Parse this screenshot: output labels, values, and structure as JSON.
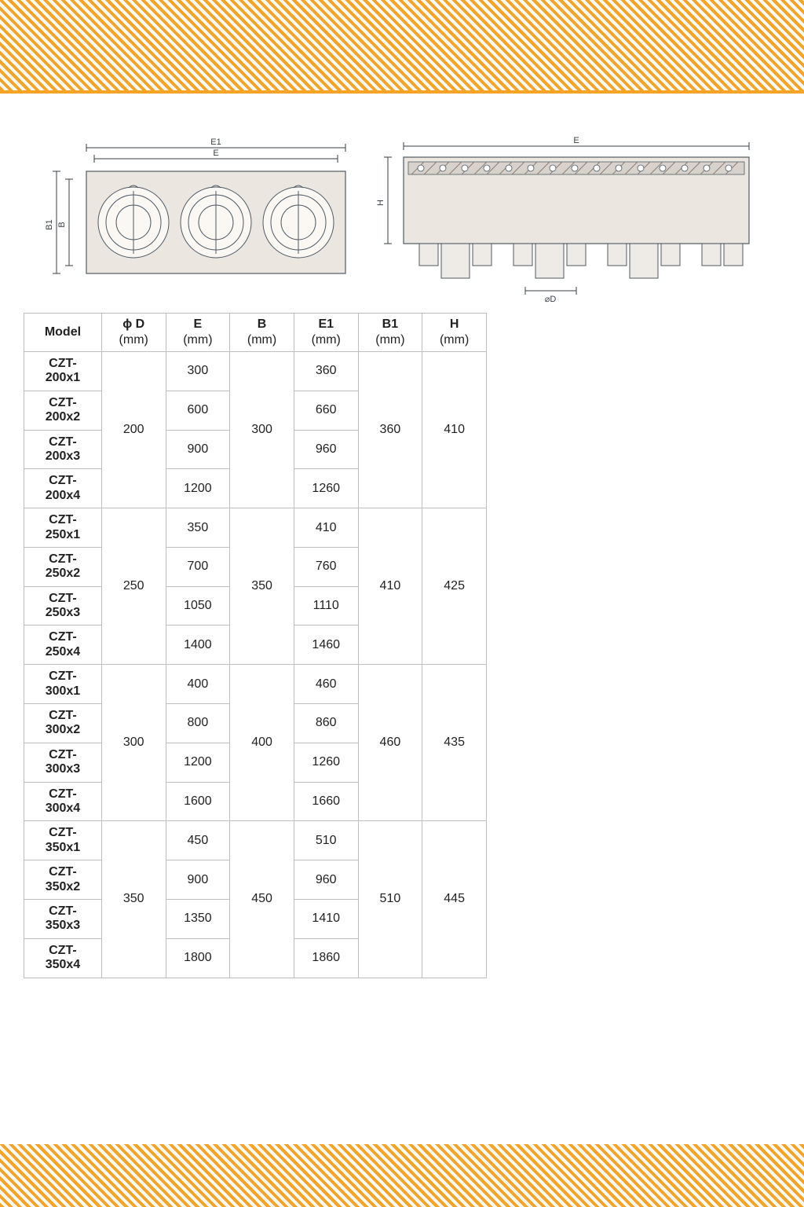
{
  "colors": {
    "stripe": "#f6a326",
    "border": "#bfbfbf",
    "text": "#222222",
    "diagram_fill": "#ece6e0",
    "diagram_stroke": "#4f5a63",
    "dim_line": "#3a3f46"
  },
  "diagrams": {
    "front": {
      "labels": {
        "E1": "E1",
        "E": "E",
        "B1": "B1",
        "B": "B"
      }
    },
    "side": {
      "labels": {
        "E": "E",
        "H": "H",
        "D": "⌀D"
      }
    }
  },
  "table": {
    "columns": [
      {
        "label": "Model",
        "unit": ""
      },
      {
        "label": "ϕ D",
        "unit": "(mm)"
      },
      {
        "label": "E",
        "unit": "(mm)"
      },
      {
        "label": "B",
        "unit": "(mm)"
      },
      {
        "label": "E1",
        "unit": "(mm)"
      },
      {
        "label": "B1",
        "unit": "(mm)"
      },
      {
        "label": "H",
        "unit": "(mm)"
      }
    ],
    "groups": [
      {
        "D": "200",
        "B": "300",
        "B1": "360",
        "H": "410",
        "rows": [
          {
            "model": "CZT-200x1",
            "E": "300",
            "E1": "360"
          },
          {
            "model": "CZT-200x2",
            "E": "600",
            "E1": "660"
          },
          {
            "model": "CZT-200x3",
            "E": "900",
            "E1": "960"
          },
          {
            "model": "CZT-200x4",
            "E": "1200",
            "E1": "1260"
          }
        ]
      },
      {
        "D": "250",
        "B": "350",
        "B1": "410",
        "H": "425",
        "rows": [
          {
            "model": "CZT-250x1",
            "E": "350",
            "E1": "410"
          },
          {
            "model": "CZT-250x2",
            "E": "700",
            "E1": "760"
          },
          {
            "model": "CZT-250x3",
            "E": "1050",
            "E1": "1110"
          },
          {
            "model": "CZT-250x4",
            "E": "1400",
            "E1": "1460"
          }
        ]
      },
      {
        "D": "300",
        "B": "400",
        "B1": "460",
        "H": "435",
        "rows": [
          {
            "model": "CZT-300x1",
            "E": "400",
            "E1": "460"
          },
          {
            "model": "CZT-300x2",
            "E": "800",
            "E1": "860"
          },
          {
            "model": "CZT-300x3",
            "E": "1200",
            "E1": "1260"
          },
          {
            "model": "CZT-300x4",
            "E": "1600",
            "E1": "1660"
          }
        ]
      },
      {
        "D": "350",
        "B": "450",
        "B1": "510",
        "H": "445",
        "rows": [
          {
            "model": "CZT-350x1",
            "E": "450",
            "E1": "510"
          },
          {
            "model": "CZT-350x2",
            "E": "900",
            "E1": "960"
          },
          {
            "model": "CZT-350x3",
            "E": "1350",
            "E1": "1410"
          },
          {
            "model": "CZT-350x4",
            "E": "1800",
            "E1": "1860"
          }
        ]
      }
    ]
  }
}
